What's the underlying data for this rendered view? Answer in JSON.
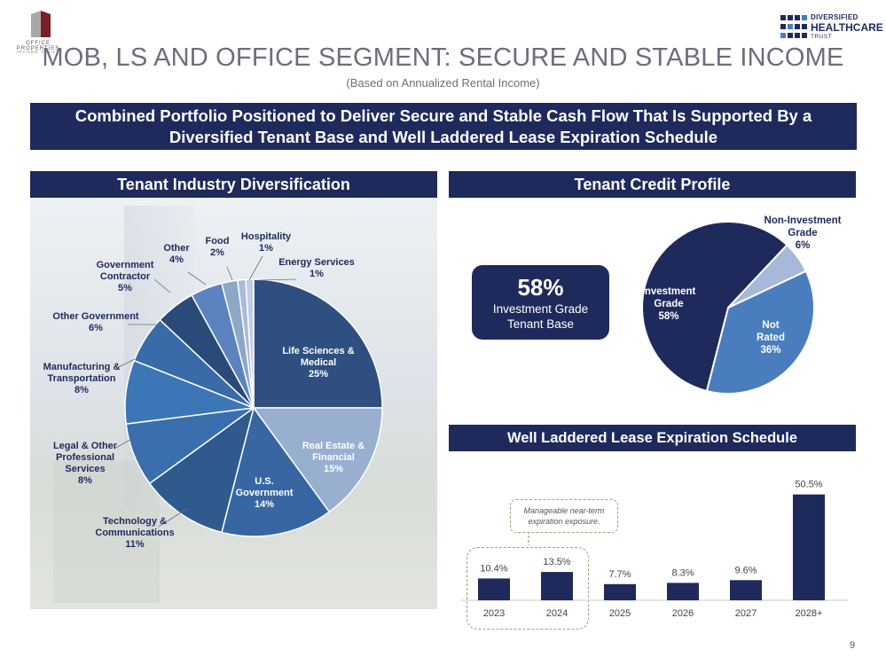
{
  "logos": {
    "left_name": "OFFICE PROPERTIES",
    "left_sub": "INCOME TRUST",
    "right_line1": "DIVERSIFIED",
    "right_line2": "HEALTHCARE",
    "right_line3": "TRUST"
  },
  "title": "MOB, LS AND OFFICE SEGMENT: SECURE AND STABLE INCOME",
  "subtitle": "(Based on Annualized Rental Income)",
  "banner": "Combined Portfolio Positioned to Deliver Secure and Stable Cash Flow That Is Supported By a Diversified Tenant Base and Well Laddered Lease Expiration Schedule",
  "headers": {
    "industry": "Tenant Industry Diversification",
    "credit": "Tenant Credit Profile",
    "lease": "Well Laddered Lease Expiration Schedule"
  },
  "kpi": {
    "value": "58%",
    "label_line1": "Investment Grade",
    "label_line2": "Tenant Base"
  },
  "note": "Manageable near-term expiration exposure.",
  "page_number": "9",
  "colors": {
    "navy": "#1f2a5c",
    "bar": "#1f2a5c"
  },
  "chart_data": [
    {
      "type": "pie",
      "title": "Tenant Industry Diversification",
      "slices": [
        {
          "name": "Life Sciences & Medical",
          "label_lines": [
            "Life Sciences &",
            "Medical",
            "25%"
          ],
          "value": 25,
          "color": "#2e4f7f"
        },
        {
          "name": "Real Estate & Financial",
          "label_lines": [
            "Real Estate &",
            "Financial",
            "15%"
          ],
          "value": 15,
          "color": "#98afd0"
        },
        {
          "name": "U.S. Government",
          "label_lines": [
            "U.S.",
            "Government",
            "14%"
          ],
          "value": 14,
          "color": "#3766a3"
        },
        {
          "name": "Technology & Communications",
          "label_lines": [
            "Technology &",
            "Communications",
            "11%"
          ],
          "value": 11,
          "color": "#2f5a8e"
        },
        {
          "name": "Legal & Other Professional Services",
          "label_lines": [
            "Legal & Other",
            "Professional",
            "Services",
            "8%"
          ],
          "value": 8,
          "color": "#3a6fad"
        },
        {
          "name": "Manufacturing & Transportation",
          "label_lines": [
            "Manufacturing &",
            "Transportation",
            "8%"
          ],
          "value": 8,
          "color": "#3d76b6"
        },
        {
          "name": "Other Government",
          "label_lines": [
            "Other Government",
            "6%"
          ],
          "value": 6,
          "color": "#386ba7"
        },
        {
          "name": "Government Contractor",
          "label_lines": [
            "Government",
            "Contractor",
            "5%"
          ],
          "value": 5,
          "color": "#2a4a7a"
        },
        {
          "name": "Other",
          "label_lines": [
            "Other",
            "4%"
          ],
          "value": 4,
          "color": "#5a83bf"
        },
        {
          "name": "Food",
          "label_lines": [
            "Food",
            "2%"
          ],
          "value": 2,
          "color": "#8ea6c8"
        },
        {
          "name": "Hospitality",
          "label_lines": [
            "Hospitality",
            "1%"
          ],
          "value": 1,
          "color": "#a9bbd6"
        },
        {
          "name": "Energy Services",
          "label_lines": [
            "Energy Services",
            "1%"
          ],
          "value": 1,
          "color": "#c2cfe2"
        }
      ]
    },
    {
      "type": "pie",
      "title": "Tenant Credit Profile",
      "slices": [
        {
          "name": "Not Rated",
          "label_lines": [
            "Not",
            "Rated",
            "36%"
          ],
          "value": 36,
          "color": "#4a7dbe"
        },
        {
          "name": "Investment Grade",
          "label_lines": [
            "Investment",
            "Grade",
            "58%"
          ],
          "value": 58,
          "color": "#1f2a5c"
        },
        {
          "name": "Non-Investment Grade",
          "label_lines": [
            "Non-Investment",
            "Grade",
            "6%"
          ],
          "value": 6,
          "color": "#a6b9d8"
        }
      ]
    },
    {
      "type": "bar",
      "title": "Well Laddered Lease Expiration Schedule",
      "categories": [
        "2023",
        "2024",
        "2025",
        "2026",
        "2027",
        "2028+"
      ],
      "values": [
        10.4,
        13.5,
        7.7,
        8.3,
        9.6,
        50.5
      ],
      "value_labels": [
        "10.4%",
        "13.5%",
        "7.7%",
        "8.3%",
        "9.6%",
        "50.5%"
      ],
      "ylim": [
        0,
        55
      ]
    }
  ]
}
